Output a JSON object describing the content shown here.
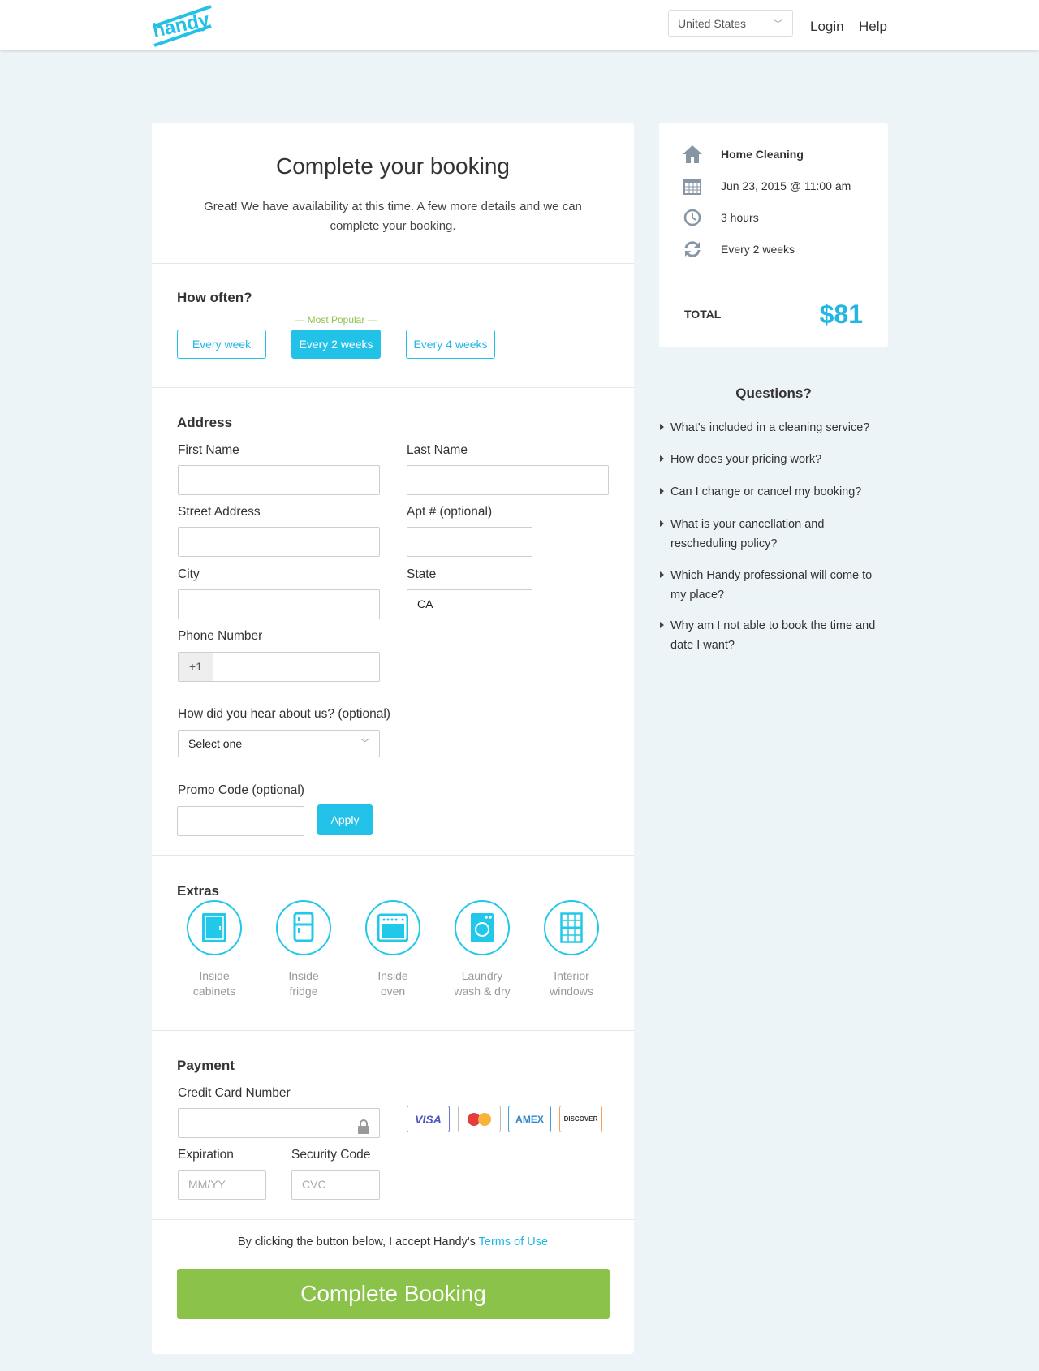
{
  "header": {
    "logo": "handy",
    "country": "United States",
    "login": "Login",
    "help": "Help"
  },
  "booking": {
    "title": "Complete your booking",
    "subtitle": "Great! We have availability at this time. A few more details and we can complete your booking.",
    "how_often": {
      "heading": "How often?",
      "most_popular": "— Most Popular —",
      "options": [
        "Every week",
        "Every 2 weeks",
        "Every 4 weeks"
      ],
      "selected": "Every 2 weeks"
    },
    "address": {
      "heading": "Address",
      "first_name": "First Name",
      "last_name": "Last Name",
      "street": "Street Address",
      "apt": "Apt # (optional)",
      "city": "City",
      "state": "State",
      "state_value": "CA",
      "phone": "Phone Number",
      "phone_prefix": "+1",
      "hear_label": "How did you hear about us? (optional)",
      "hear_value": "Select one",
      "promo_label": "Promo Code (optional)",
      "apply": "Apply"
    },
    "extras": {
      "heading": "Extras",
      "items": [
        {
          "line1": "Inside",
          "line2": "cabinets",
          "icon": "cabinet-icon"
        },
        {
          "line1": "Inside",
          "line2": "fridge",
          "icon": "fridge-icon"
        },
        {
          "line1": "Inside",
          "line2": "oven",
          "icon": "oven-icon"
        },
        {
          "line1": "Laundry",
          "line2": "wash & dry",
          "icon": "washer-icon"
        },
        {
          "line1": "Interior",
          "line2": "windows",
          "icon": "window-icon"
        }
      ]
    },
    "payment": {
      "heading": "Payment",
      "cc_label": "Credit Card Number",
      "exp_label": "Expiration",
      "exp_placeholder": "MM/YY",
      "cvc_label": "Security Code",
      "cvc_placeholder": "CVC",
      "cards": [
        "VISA",
        "",
        "AMEX",
        "DISCOVER"
      ]
    },
    "terms_text": "By clicking the button below, I accept Handy's ",
    "terms_link": "Terms of Use",
    "submit": "Complete Booking"
  },
  "summary": {
    "service": "Home Cleaning",
    "date": "Jun 23, 2015 @ 11:00 am",
    "duration": "3 hours",
    "frequency": "Every 2 weeks",
    "total_label": "TOTAL",
    "total": "$81"
  },
  "questions": {
    "heading": "Questions?",
    "items": [
      "What's included in a cleaning service?",
      "How does your pricing work?",
      "Can I change or cancel my booking?",
      "What is your cancellation and rescheduling policy?",
      "Which Handy professional will come to my place?",
      "Why am I not able to book the time and date I want?"
    ]
  },
  "colors": {
    "accent": "#22c1e8",
    "submit": "#8bc34a",
    "bg": "#edf4f7"
  }
}
